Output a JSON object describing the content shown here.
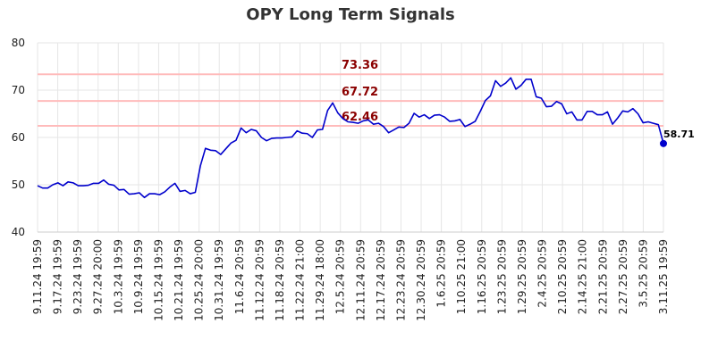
{
  "chart_data": {
    "type": "line",
    "title": "OPY Long Term Signals",
    "xlabel": "",
    "ylabel": "",
    "ylim": [
      40,
      80
    ],
    "yticks": [
      40,
      50,
      60,
      70,
      80
    ],
    "grid": true,
    "legend": "none",
    "colors": {
      "line": "#0000cc",
      "ref_line": "#ffbbbb",
      "ref_label": "#8b0000",
      "grid": "#e6e6e6"
    },
    "xtick_labels": [
      "9.11.24 19:59",
      "9.17.24 19:59",
      "9.23.24 19:59",
      "9.27.24 20:00",
      "10.3.24 19:59",
      "10.9.24 19:59",
      "10.15.24 19:59",
      "10.21.24 19:59",
      "10.25.24 20:00",
      "10.31.24 19:59",
      "11.6.24 20:59",
      "11.12.24 20:59",
      "11.18.24 20:59",
      "11.22.24 21:00",
      "11.29.24 18:00",
      "12.5.24 20:59",
      "12.11.24 20:59",
      "12.17.24 20:59",
      "12.23.24 20:59",
      "12.30.24 20:59",
      "1.6.25 20:59",
      "1.10.25 21:00",
      "1.16.25 20:59",
      "1.23.25 20:59",
      "1.29.25 20:59",
      "2.4.25 20:59",
      "2.10.25 20:59",
      "2.14.25 21:00",
      "2.21.25 20:59",
      "2.27.25 20:59",
      "3.5.25 20:59",
      "3.11.25 19:59"
    ],
    "reference_lines": [
      {
        "value": 73.36,
        "label": "73.36"
      },
      {
        "value": 67.72,
        "label": "67.72"
      },
      {
        "value": 62.46,
        "label": "62.46"
      }
    ],
    "series": [
      {
        "values": [
          49.8,
          49.3,
          49.3,
          50.0,
          50.4,
          49.8,
          50.6,
          50.4,
          49.8,
          49.8,
          49.9,
          50.3,
          50.3,
          51.0,
          50.1,
          49.9,
          48.9,
          49.0,
          48.0,
          48.1,
          48.3,
          47.3,
          48.1,
          48.1,
          47.9,
          48.5,
          49.5,
          50.3,
          48.6,
          48.8,
          48.1,
          48.4,
          54.0,
          57.7,
          57.3,
          57.2,
          56.4,
          57.6,
          58.8,
          59.4,
          62.0,
          61.0,
          61.7,
          61.4,
          60.0,
          59.3,
          59.8,
          59.9,
          59.9,
          60.0,
          60.1,
          61.4,
          60.9,
          60.8,
          60.0,
          61.6,
          61.7,
          65.7,
          67.3,
          65.2,
          64.0,
          63.3,
          63.2,
          63.0,
          63.5,
          63.7,
          62.8,
          63.0,
          62.3,
          61.0,
          61.6,
          62.2,
          62.1,
          63.0,
          65.1,
          64.3,
          64.8,
          64.0,
          64.7,
          64.8,
          64.3,
          63.4,
          63.5,
          63.8,
          62.3,
          62.8,
          63.4,
          65.5,
          67.8,
          68.8,
          72.0,
          70.8,
          71.5,
          72.6,
          70.2,
          71.0,
          72.3,
          72.3,
          68.6,
          68.3,
          66.5,
          66.6,
          67.6,
          67.1,
          65.0,
          65.4,
          63.7,
          63.7,
          65.5,
          65.5,
          64.8,
          64.8,
          65.4,
          62.8,
          64.1,
          65.6,
          65.4,
          66.1,
          65.0,
          63.1,
          63.3,
          63.0,
          62.7,
          58.71
        ]
      }
    ],
    "last_value_label": "58.71"
  }
}
